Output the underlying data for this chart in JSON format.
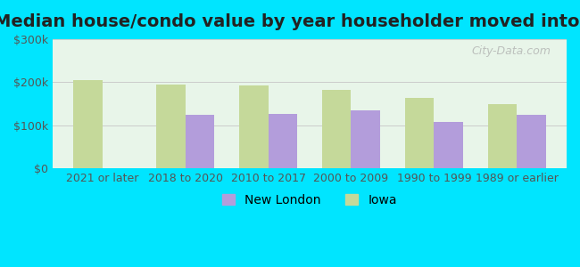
{
  "title": "Median house/condo value by year householder moved into unit",
  "categories": [
    "2021 or later",
    "2018 to 2020",
    "2010 to 2017",
    "2000 to 2009",
    "1990 to 1999",
    "1989 or earlier"
  ],
  "new_london": [
    null,
    125000,
    127000,
    135000,
    107000,
    125000
  ],
  "iowa": [
    205000,
    195000,
    193000,
    183000,
    163000,
    150000
  ],
  "new_london_color": "#b39ddb",
  "iowa_color": "#c5d99a",
  "background_outer": "#00e5ff",
  "background_inner_top": "#e8f5e9",
  "background_inner_bottom": "#e0f7e0",
  "ylim": [
    0,
    300000
  ],
  "yticks": [
    0,
    100000,
    200000,
    300000
  ],
  "ytick_labels": [
    "$0",
    "$100k",
    "$200k",
    "$300k"
  ],
  "watermark": "City-Data.com",
  "legend_labels": [
    "New London",
    "Iowa"
  ],
  "bar_width": 0.35,
  "title_fontsize": 14,
  "tick_fontsize": 9,
  "legend_fontsize": 10
}
